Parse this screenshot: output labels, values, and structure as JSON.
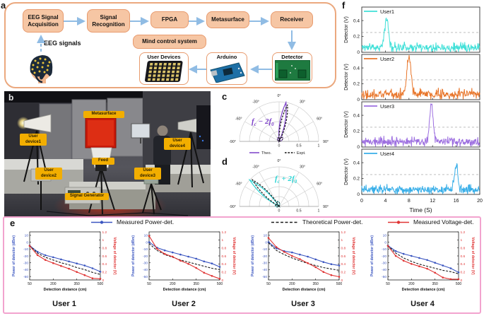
{
  "figure": {
    "panel_labels": {
      "a": "a",
      "b": "b",
      "c": "c",
      "d": "d",
      "e": "e",
      "f": "f"
    }
  },
  "panels": {
    "a": {
      "blocks": [
        {
          "label": "EEG Signal Acquisition"
        },
        {
          "label": "Signal Recognition"
        },
        {
          "label": "FPGA"
        },
        {
          "label": "Metasurface"
        },
        {
          "label": "Receiver"
        },
        {
          "label": "Mind control system"
        }
      ],
      "eeg_signals_label": "EEG signals",
      "devices": [
        {
          "label": "User Devices"
        },
        {
          "label": "Arduino"
        },
        {
          "label": "Detector"
        }
      ]
    },
    "b": {
      "labels": [
        {
          "text": "Metasurface"
        },
        {
          "text": "Feed"
        },
        {
          "text": "User device1"
        },
        {
          "text": "User device2"
        },
        {
          "text": "User device3"
        },
        {
          "text": "User device4"
        },
        {
          "text": "Signal Generator"
        }
      ]
    },
    "c": {
      "annotation": {
        "f1": "f",
        "s1": "c",
        "op": "− 2",
        "f2": "f",
        "s2": "0"
      }
    },
    "d": {
      "annotation": {
        "f1": "f",
        "s1": "c",
        "op": "+ 2",
        "f2": "f",
        "s2": "0"
      }
    },
    "e": {
      "legend": [
        {
          "name": "Measured Power-det."
        },
        {
          "name": "Theoretical Power-det."
        },
        {
          "name": "Measured Voltage-det."
        }
      ],
      "titles": [
        "User 1",
        "User 2",
        "User 3",
        "User 4"
      ]
    },
    "f": {
      "xlabel": "Time (S)",
      "ylabel": "Detector (V)"
    }
  },
  "colors": {
    "panel_a_border": "#EBA87E",
    "block_fill": "#F6C6A4",
    "arrow_blue": "#90BCE4",
    "photo_label": "#F2AE00",
    "panel_e_border": "#F2A3CE",
    "power_blue": "#3A55C0",
    "voltage_red": "#E03434",
    "theory_black": "#1a1a1a",
    "polar_purple": "#7B3FC8",
    "polar_cyan": "#2BD4D4",
    "user1": "#40E0D8",
    "user2": "#E8762B",
    "user3": "#9D6FE0",
    "user4": "#38AEE8"
  },
  "chart_data": [
    {
      "id": "c",
      "type": "line",
      "variant": "polar-half",
      "annotation": "fc - 2f0",
      "r_ticks": [
        0,
        0.5,
        1
      ],
      "angle_ticks_deg": [
        -90,
        -60,
        -30,
        0,
        30,
        60,
        90
      ],
      "series": [
        {
          "name": "Theo.",
          "color": "#7B3FC8",
          "style": "solid",
          "beam_angle_deg": 10,
          "peak_r": 1.0
        },
        {
          "name": "Expt.",
          "color": "#111111",
          "style": "dashed",
          "beam_angle_deg": 13,
          "peak_r": 0.95
        }
      ]
    },
    {
      "id": "d",
      "type": "line",
      "variant": "polar-half",
      "annotation": "fc + 2f0",
      "r_ticks": [
        0,
        0.5,
        1
      ],
      "angle_ticks_deg": [
        -90,
        -60,
        -30,
        0,
        30,
        60,
        90
      ],
      "series": [
        {
          "name": "Theo.",
          "color": "#2BD4D4",
          "style": "solid",
          "beam_angle_deg": -48,
          "peak_r": 1.0
        },
        {
          "name": "Expt.",
          "color": "#111111",
          "style": "dashed",
          "beam_angle_deg": -45,
          "peak_r": 0.95
        }
      ]
    },
    {
      "id": "e1",
      "type": "line",
      "title": "User 1",
      "xlabel": "Detection distance (cm)",
      "ylabel_left": "Power of detector (dBm)",
      "ylabel_right": "Voltage of detector (V)",
      "x": [
        50,
        100,
        150,
        200,
        250,
        300,
        350,
        400,
        450,
        500
      ],
      "xticks": [
        50,
        200,
        350,
        500
      ],
      "ylim_left": [
        -55,
        15
      ],
      "ylim_right": [
        0,
        1.2
      ],
      "series": [
        {
          "name": "Measured Power-det.",
          "axis": "left",
          "color": "#3A55C0",
          "style": "solid",
          "marker": true,
          "values": [
            -5,
            -14,
            -19,
            -22,
            -25,
            -28,
            -31,
            -34,
            -38,
            -43
          ]
        },
        {
          "name": "Theoretical Power-det.",
          "axis": "left",
          "color": "#1a1a1a",
          "style": "dashed",
          "marker": false,
          "values": [
            -5,
            -16,
            -22,
            -26,
            -30,
            -33,
            -37,
            -40,
            -44,
            -47
          ]
        },
        {
          "name": "Measured Voltage-det.",
          "axis": "right",
          "color": "#E03434",
          "style": "solid",
          "marker": true,
          "values": [
            0.85,
            0.62,
            0.5,
            0.42,
            0.35,
            0.28,
            0.2,
            0.12,
            0.04,
            0.03
          ]
        }
      ]
    },
    {
      "id": "e2",
      "type": "line",
      "title": "User 2",
      "xlabel": "Detection distance (cm)",
      "ylabel_left": "Power of detector (dBm)",
      "ylabel_right": "Voltage of detector (V)",
      "x": [
        50,
        100,
        150,
        200,
        250,
        300,
        350,
        400,
        450,
        500
      ],
      "xticks": [
        50,
        200,
        350,
        500
      ],
      "ylim_left": [
        -55,
        15
      ],
      "ylim_right": [
        0,
        1.2
      ],
      "series": [
        {
          "name": "Measured Power-det.",
          "axis": "left",
          "color": "#3A55C0",
          "style": "solid",
          "marker": true,
          "values": [
            0,
            -8,
            -12,
            -15,
            -18,
            -21,
            -24,
            -28,
            -31,
            -36
          ]
        },
        {
          "name": "Theoretical Power-det.",
          "axis": "left",
          "color": "#1a1a1a",
          "style": "dashed",
          "marker": false,
          "values": [
            -2,
            -12,
            -18,
            -22,
            -26,
            -29,
            -32,
            -35,
            -38,
            -40
          ]
        },
        {
          "name": "Measured Voltage-det.",
          "axis": "right",
          "color": "#E03434",
          "style": "solid",
          "marker": true,
          "values": [
            1.1,
            0.78,
            0.65,
            0.58,
            0.48,
            0.4,
            0.3,
            0.18,
            0.1,
            0.03
          ]
        }
      ]
    },
    {
      "id": "e3",
      "type": "line",
      "title": "User 3",
      "xlabel": "Detection distance (cm)",
      "ylabel_left": "Power of detector (dBm)",
      "ylabel_right": "Voltage of detector (V)",
      "x": [
        50,
        100,
        150,
        200,
        250,
        300,
        350,
        400,
        450,
        500
      ],
      "xticks": [
        50,
        200,
        350,
        500
      ],
      "ylim_left": [
        -55,
        15
      ],
      "ylim_right": [
        0,
        1.2
      ],
      "series": [
        {
          "name": "Measured Power-det.",
          "axis": "left",
          "color": "#3A55C0",
          "style": "solid",
          "marker": true,
          "values": [
            0,
            -9,
            -13,
            -15,
            -18,
            -21,
            -25,
            -29,
            -32,
            -34
          ]
        },
        {
          "name": "Theoretical Power-det.",
          "axis": "left",
          "color": "#1a1a1a",
          "style": "dashed",
          "marker": false,
          "values": [
            -1,
            -12,
            -18,
            -23,
            -27,
            -31,
            -34,
            -37,
            -39,
            -41
          ]
        },
        {
          "name": "Measured Voltage-det.",
          "axis": "right",
          "color": "#E03434",
          "style": "solid",
          "marker": true,
          "values": [
            1.05,
            0.82,
            0.7,
            0.6,
            0.52,
            0.42,
            0.32,
            0.2,
            0.12,
            0.08
          ]
        }
      ]
    },
    {
      "id": "e4",
      "type": "line",
      "title": "User 4",
      "xlabel": "Detection distance (cm)",
      "ylabel_left": "Power of detector (dBm)",
      "ylabel_right": "Voltage of detector (V)",
      "x": [
        50,
        100,
        150,
        200,
        250,
        300,
        350,
        400,
        450,
        500
      ],
      "xticks": [
        50,
        200,
        350,
        500
      ],
      "ylim_left": [
        -55,
        15
      ],
      "ylim_right": [
        0,
        1.2
      ],
      "series": [
        {
          "name": "Measured Power-det.",
          "axis": "left",
          "color": "#3A55C0",
          "style": "solid",
          "marker": true,
          "values": [
            -5,
            -13,
            -17,
            -20,
            -23,
            -26,
            -30,
            -34,
            -38,
            -44
          ]
        },
        {
          "name": "Theoretical Power-det.",
          "axis": "left",
          "color": "#1a1a1a",
          "style": "dashed",
          "marker": false,
          "values": [
            -5,
            -16,
            -23,
            -28,
            -32,
            -35,
            -38,
            -41,
            -43,
            -46
          ]
        },
        {
          "name": "Measured Voltage-det.",
          "axis": "right",
          "color": "#E03434",
          "style": "solid",
          "marker": true,
          "values": [
            0.85,
            0.6,
            0.48,
            0.4,
            0.34,
            0.28,
            0.18,
            0.06,
            0.02,
            0.02
          ]
        }
      ]
    },
    {
      "id": "f1",
      "type": "line",
      "title": "User1",
      "color": "#40E0D8",
      "xlabel": "Time (S)",
      "ylabel": "Detector (V)",
      "xlim": [
        0,
        20
      ],
      "ylim": [
        0,
        0.57
      ],
      "yticks": [
        0,
        0.2,
        0.4
      ],
      "xticks": [
        0,
        4,
        8,
        12,
        16,
        20
      ],
      "threshold": 0.25,
      "baseline": 0.065,
      "noise_amp": 0.042,
      "seed": 11,
      "peak": {
        "t": 4.2,
        "h": 0.36,
        "w": 0.32
      }
    },
    {
      "id": "f2",
      "type": "line",
      "title": "User2",
      "color": "#E8762B",
      "xlabel": "Time (S)",
      "ylabel": "Detector (V)",
      "xlim": [
        0,
        20
      ],
      "ylim": [
        0,
        0.57
      ],
      "yticks": [
        0,
        0.2,
        0.4
      ],
      "xticks": [
        0,
        4,
        8,
        12,
        16,
        20
      ],
      "threshold": 0.25,
      "baseline": 0.07,
      "noise_amp": 0.048,
      "seed": 22,
      "peak": {
        "t": 8.0,
        "h": 0.49,
        "w": 0.34
      }
    },
    {
      "id": "f3",
      "type": "line",
      "title": "User3",
      "color": "#9D6FE0",
      "xlabel": "Time (S)",
      "ylabel": "Detector (V)",
      "xlim": [
        0,
        20
      ],
      "ylim": [
        0,
        0.57
      ],
      "yticks": [
        0,
        0.2,
        0.4
      ],
      "xticks": [
        0,
        4,
        8,
        12,
        16,
        20
      ],
      "threshold": 0.25,
      "baseline": 0.065,
      "noise_amp": 0.045,
      "seed": 33,
      "peak": {
        "t": 11.8,
        "h": 0.48,
        "w": 0.3
      }
    },
    {
      "id": "f4",
      "type": "line",
      "title": "User4",
      "color": "#38AEE8",
      "xlabel": "Time (S)",
      "ylabel": "Detector (V)",
      "xlim": [
        0,
        20
      ],
      "ylim": [
        0,
        0.57
      ],
      "yticks": [
        0,
        0.2,
        0.4
      ],
      "xticks": [
        0,
        4,
        8,
        12,
        16,
        20
      ],
      "threshold": 0.25,
      "baseline": 0.06,
      "noise_amp": 0.042,
      "seed": 44,
      "peak": {
        "t": 16.0,
        "h": 0.3,
        "w": 0.3
      }
    }
  ]
}
